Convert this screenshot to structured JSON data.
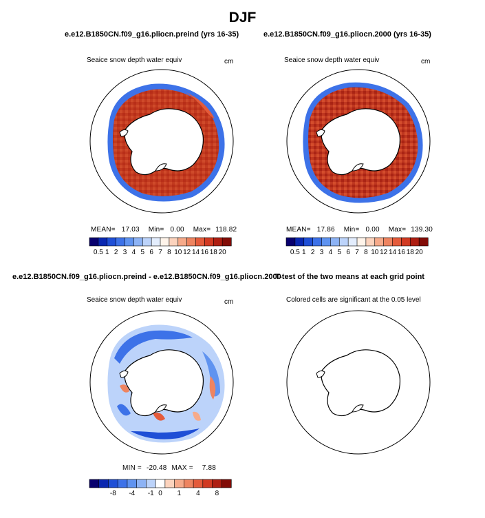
{
  "page_title": "DJF",
  "panels": {
    "p1": {
      "title": "e.e12.B1850CN.f09_g16.pliocn.preind (yrs 16-35)",
      "var_label": "Seaice snow depth water equiv",
      "units": "cm",
      "mean_label": "MEAN=",
      "mean": "17.03",
      "min_label": "Min=",
      "min": "0.00",
      "max_label": "Max=",
      "max": "118.82"
    },
    "p2": {
      "title": "e.e12.B1850CN.f09_g16.pliocn.2000 (yrs 16-35)",
      "var_label": "Seaice snow depth water equiv",
      "units": "cm",
      "mean_label": "MEAN=",
      "mean": "17.86",
      "min_label": "Min=",
      "min": "0.00",
      "max_label": "Max=",
      "max": "139.30"
    },
    "p3": {
      "title": "e.e12.B1850CN.f09_g16.pliocn.preind - e.e12.B1850CN.f09_g16.pliocn.2000",
      "var_label": "Seaice snow depth water equiv",
      "units": "cm",
      "min_label": "MIN =",
      "min": "-20.48",
      "max_label": "MAX =",
      "max": "7.88"
    },
    "p4": {
      "title": "T-test of the two means at each grid point",
      "note": "Colored cells are significant at the 0.05 level"
    }
  },
  "colors": {
    "abs_bar": [
      "#08006e",
      "#0a27b0",
      "#1f4fd6",
      "#3d72e8",
      "#5f93f0",
      "#8db3f5",
      "#bcd3fa",
      "#e3edfd",
      "#fff4ea",
      "#fcd3bd",
      "#f6aa8a",
      "#ee8460",
      "#e45b3b",
      "#d13a22",
      "#ae1e12",
      "#820c07"
    ],
    "diff_bar": [
      "#08006e",
      "#0a27b0",
      "#1f4fd6",
      "#3d72e8",
      "#5f93f0",
      "#8db3f5",
      "#bcd3fa",
      "#ffffff",
      "#fcd3bd",
      "#f6aa8a",
      "#ee8460",
      "#e45b3b",
      "#d13a22",
      "#ae1e12",
      "#820c07"
    ],
    "ocean": "#ffffff",
    "coast": "#000000"
  },
  "chart_data": [
    {
      "type": "heatmap",
      "projection": "south-polar-stereographic",
      "title": "e.e12.B1850CN.f09_g16.pliocn.preind (yrs 16-35)",
      "variable": "Seaice snow depth water equiv",
      "units": "cm",
      "colorbar_levels": [
        "0.5",
        "1",
        "2",
        "3",
        "4",
        "5",
        "6",
        "7",
        "8",
        "10",
        "12",
        "14",
        "16",
        "18",
        "20"
      ],
      "stats": {
        "mean": 17.03,
        "min": 0.0,
        "max": 118.82
      }
    },
    {
      "type": "heatmap",
      "projection": "south-polar-stereographic",
      "title": "e.e12.B1850CN.f09_g16.pliocn.2000 (yrs 16-35)",
      "variable": "Seaice snow depth water equiv",
      "units": "cm",
      "colorbar_levels": [
        "0.5",
        "1",
        "2",
        "3",
        "4",
        "5",
        "6",
        "7",
        "8",
        "10",
        "12",
        "14",
        "16",
        "18",
        "20"
      ],
      "stats": {
        "mean": 17.86,
        "min": 0.0,
        "max": 139.3
      }
    },
    {
      "type": "heatmap",
      "projection": "south-polar-stereographic",
      "title": "e.e12.B1850CN.f09_g16.pliocn.preind - e.e12.B1850CN.f09_g16.pliocn.2000",
      "variable": "Seaice snow depth water equiv",
      "units": "cm",
      "colorbar_ticks": [
        "-8",
        "-4",
        "-1",
        "0",
        "1",
        "4",
        "8"
      ],
      "stats": {
        "min": -20.48,
        "max": 7.88
      }
    },
    {
      "type": "heatmap",
      "projection": "south-polar-stereographic",
      "title": "T-test of the two means at each grid point",
      "note": "Colored cells are significant at the 0.05 level",
      "significant_cells": 0
    }
  ]
}
